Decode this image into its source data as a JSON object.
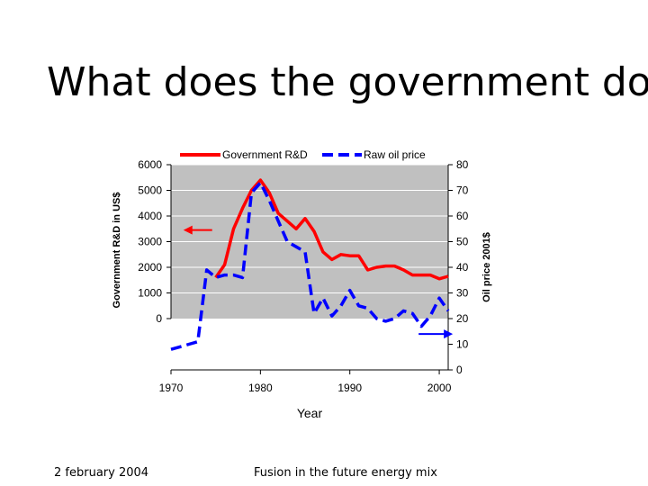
{
  "slide": {
    "title": "What does the government do?",
    "footer_date": "2 february 2004",
    "footer_topic": "Fusion in the future energy mix"
  },
  "colors": {
    "rd_line": "#ff0000",
    "oil_line": "#0000ff",
    "plot_bg": "#c0c0c0",
    "grid": "#ffffff"
  },
  "chart_data": {
    "type": "line",
    "xlabel": "Year",
    "ylabel_left": "Government R&D in US$",
    "ylabel_right": "Oil price 2001$",
    "x_ticks": [
      1970,
      1980,
      1990,
      2000
    ],
    "y_left_ticks": [
      0,
      1000,
      2000,
      3000,
      4000,
      5000,
      6000
    ],
    "y_right_ticks": [
      0,
      10,
      20,
      30,
      40,
      50,
      60,
      70,
      80
    ],
    "xlim": [
      1970,
      2001
    ],
    "ylim_right": [
      0,
      80
    ],
    "ylim_left": [
      0,
      6000
    ],
    "legend": {
      "placement": "top",
      "entries": [
        "Government R&D",
        "Raw oil price"
      ]
    },
    "grid": true,
    "series": [
      {
        "name": "Government R&D",
        "axis": "left",
        "style": "solid",
        "x": [
          1975,
          1976,
          1977,
          1978,
          1979,
          1980,
          1981,
          1982,
          1983,
          1984,
          1985,
          1986,
          1987,
          1988,
          1989,
          1990,
          1991,
          1992,
          1993,
          1994,
          1995,
          1996,
          1997,
          1998,
          1999,
          2000,
          2001
        ],
        "values": [
          1600,
          2100,
          3500,
          4300,
          5000,
          5400,
          4900,
          4100,
          3800,
          3500,
          3900,
          3400,
          2600,
          2300,
          2500,
          2450,
          2450,
          1900,
          2000,
          2050,
          2050,
          1900,
          1700,
          1700,
          1700,
          1550,
          1650
        ]
      },
      {
        "name": "Raw oil price",
        "axis": "right",
        "style": "dashed",
        "x": [
          1970,
          1971,
          1972,
          1973,
          1974,
          1975,
          1976,
          1977,
          1978,
          1979,
          1980,
          1981,
          1982,
          1983,
          1984,
          1985,
          1986,
          1987,
          1988,
          1989,
          1990,
          1991,
          1992,
          1993,
          1994,
          1995,
          1996,
          1997,
          1998,
          1999,
          2000,
          2001
        ],
        "values": [
          8,
          9,
          10,
          11,
          39,
          36,
          37,
          37,
          36,
          69,
          73,
          66,
          58,
          50,
          48,
          46,
          22,
          28,
          21,
          25,
          31,
          25,
          24,
          20,
          19,
          20,
          23,
          22,
          17,
          21,
          28,
          23
        ]
      }
    ],
    "annotations": [
      {
        "type": "arrow",
        "direction": "left",
        "points_to": "ylabel_left",
        "color": "#ff0000",
        "at_year": 1974,
        "at_value_left": 3450
      },
      {
        "type": "arrow",
        "direction": "right",
        "points_to": "ylabel_right",
        "color": "#0000ff",
        "at_year": 1998.5,
        "at_value_right": 14
      }
    ]
  }
}
